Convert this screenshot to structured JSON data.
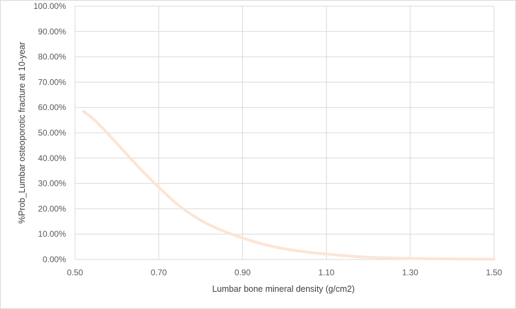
{
  "chart_data": {
    "type": "line",
    "title": "",
    "xlabel": "Lumbar bone mineral density (g/cm2)",
    "ylabel": "%Prob_Lumbar osteoporotic fracture at 10-year",
    "xlim": [
      0.5,
      1.5
    ],
    "ylim": [
      0,
      100
    ],
    "x_ticks": [
      "0.50",
      "0.70",
      "0.90",
      "1.10",
      "1.30",
      "1.50"
    ],
    "y_ticks": [
      "0.00%",
      "10.00%",
      "20.00%",
      "30.00%",
      "40.00%",
      "50.00%",
      "60.00%",
      "70.00%",
      "80.00%",
      "90.00%",
      "100.00%"
    ],
    "grid": true,
    "legend": "none",
    "line_color": "#fbe5d6",
    "series": [
      {
        "x": [
          0.52,
          0.55,
          0.6,
          0.65,
          0.7,
          0.75,
          0.8,
          0.85,
          0.9,
          0.95,
          1.0,
          1.05,
          1.1,
          1.15,
          1.2,
          1.25,
          1.3,
          1.35,
          1.4,
          1.45,
          1.5
        ],
        "values": [
          58.5,
          54.5,
          45.8,
          36.8,
          28.5,
          21.0,
          15.5,
          11.5,
          8.5,
          6.0,
          4.2,
          3.0,
          2.1,
          1.4,
          0.9,
          0.6,
          0.4,
          0.3,
          0.2,
          0.15,
          0.1
        ]
      }
    ]
  }
}
